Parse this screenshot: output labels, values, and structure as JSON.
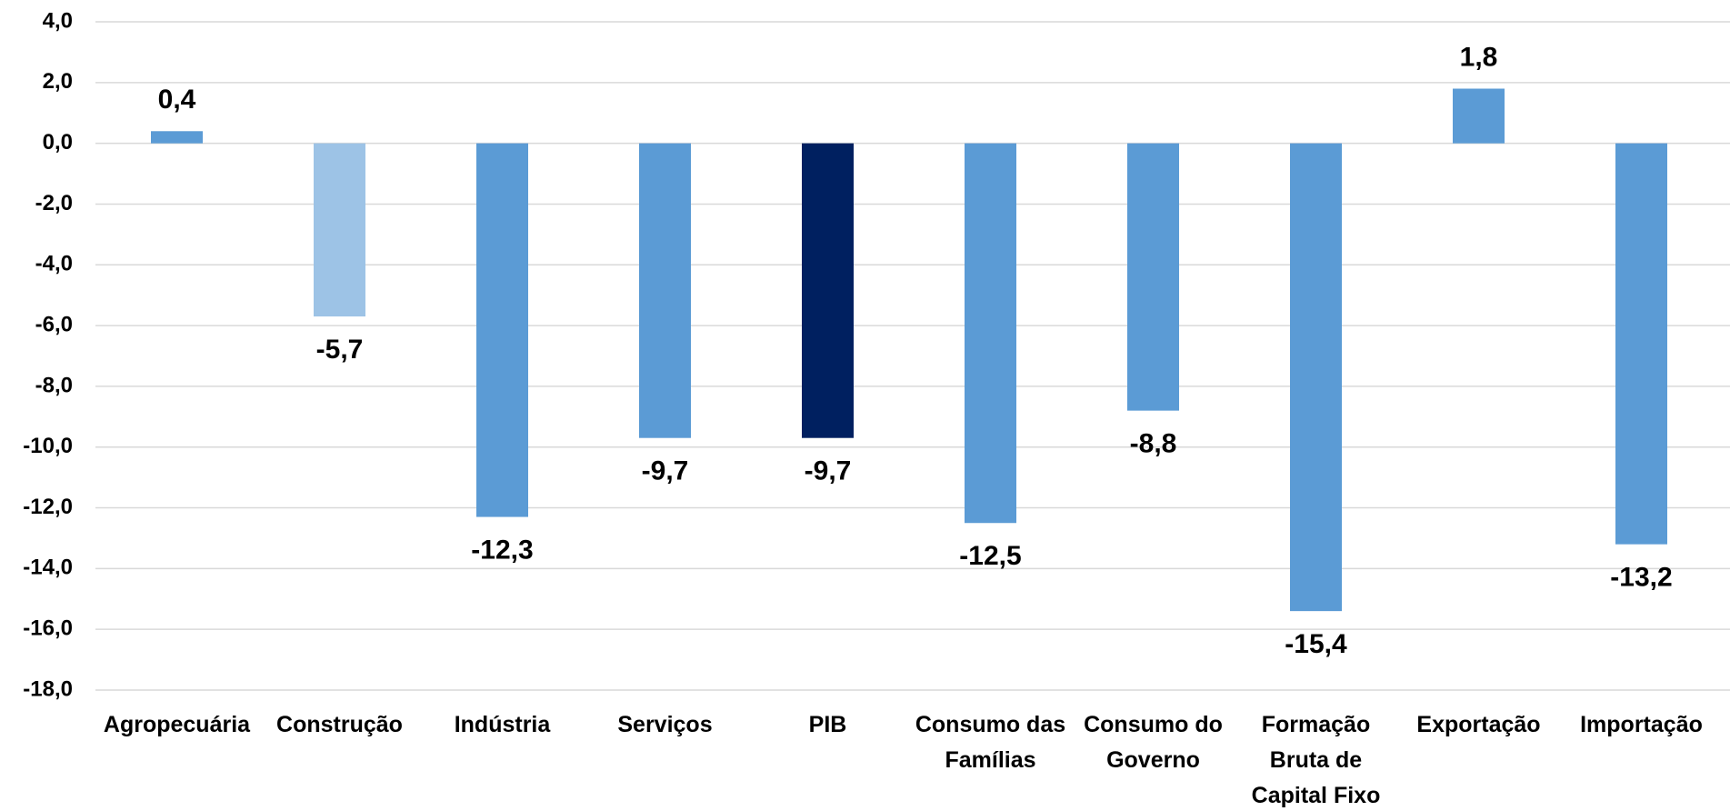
{
  "chart_data": {
    "type": "bar",
    "categories": [
      "Agropecuária",
      "Construção",
      "Indústria",
      "Serviços",
      "PIB",
      "Consumo das Famílias",
      "Consumo do Governo",
      "Formação Bruta de Capital Fixo",
      "Exportação",
      "Importação"
    ],
    "values": [
      0.4,
      -5.7,
      -12.3,
      -9.7,
      -9.7,
      -12.5,
      -8.8,
      -15.4,
      1.8,
      -13.2
    ],
    "value_labels": [
      "0,4",
      "-5,7",
      "-12,3",
      "-9,7",
      "-9,7",
      "-12,5",
      "-8,8",
      "-15,4",
      "1,8",
      "-13,2"
    ],
    "colors": [
      "#5b9bd5",
      "#9dc3e6",
      "#5b9bd5",
      "#5b9bd5",
      "#002060",
      "#5b9bd5",
      "#5b9bd5",
      "#5b9bd5",
      "#5b9bd5",
      "#5b9bd5"
    ],
    "ylim": [
      -18,
      4
    ],
    "yticks": [
      {
        "value": -18,
        "label": "-18,0"
      },
      {
        "value": -16,
        "label": "-16,0"
      },
      {
        "value": -14,
        "label": "-14,0"
      },
      {
        "value": -12,
        "label": "-12,0"
      },
      {
        "value": -10,
        "label": "-10,0"
      },
      {
        "value": -8,
        "label": "-8,0"
      },
      {
        "value": -6,
        "label": "-6,0"
      },
      {
        "value": -4,
        "label": "-4,0"
      },
      {
        "value": -2,
        "label": "-2,0"
      },
      {
        "value": 0,
        "label": "0,0"
      },
      {
        "value": 2,
        "label": "2,0"
      },
      {
        "value": 4,
        "label": "4,0"
      }
    ],
    "grid": true
  }
}
